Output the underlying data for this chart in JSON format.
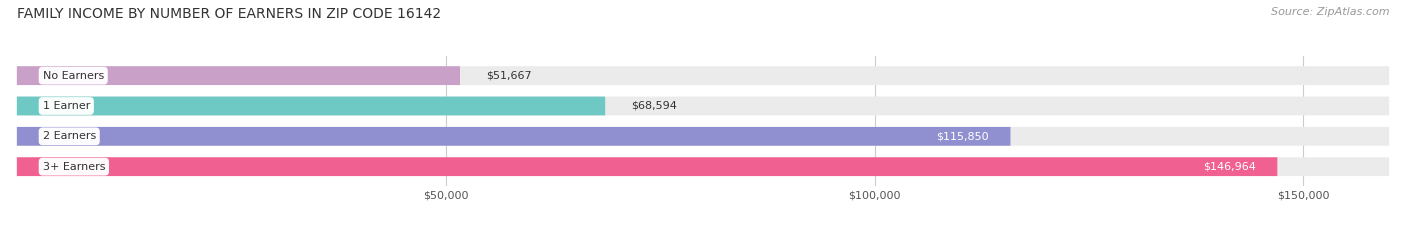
{
  "title": "FAMILY INCOME BY NUMBER OF EARNERS IN ZIP CODE 16142",
  "source": "Source: ZipAtlas.com",
  "categories": [
    "No Earners",
    "1 Earner",
    "2 Earners",
    "3+ Earners"
  ],
  "values": [
    51667,
    68594,
    115850,
    146964
  ],
  "bar_colors": [
    "#c9a0c8",
    "#6ec9c4",
    "#9090d0",
    "#f06090"
  ],
  "bar_bg_color": "#ebebeb",
  "label_colors": [
    "#555555",
    "#555555",
    "#ffffff",
    "#ffffff"
  ],
  "xlim": [
    0,
    160000
  ],
  "xticks": [
    50000,
    100000,
    150000
  ],
  "xtick_labels": [
    "$50,000",
    "$100,000",
    "$150,000"
  ],
  "value_labels": [
    "$51,667",
    "$68,594",
    "$115,850",
    "$146,964"
  ],
  "title_fontsize": 10,
  "source_fontsize": 8,
  "bar_height": 0.62,
  "background_color": "#ffffff"
}
